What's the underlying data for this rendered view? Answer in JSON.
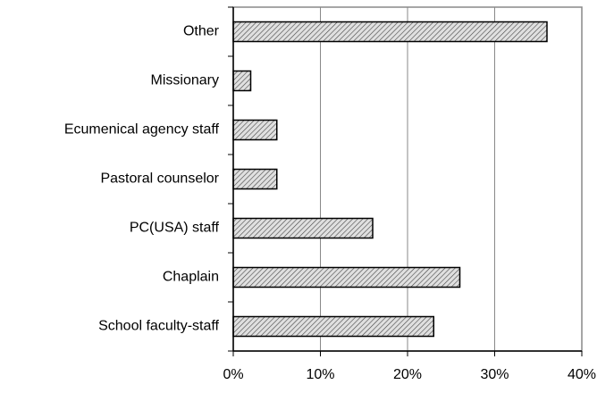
{
  "chart_data": {
    "type": "barh",
    "categories": [
      "Other",
      "Missionary",
      "Ecumenical agency staff",
      "Pastoral counselor",
      "PC(USA) staff",
      "Chaplain",
      "School faculty-staff"
    ],
    "values": [
      36,
      2,
      5,
      5,
      16,
      26,
      23
    ],
    "color": "#c8c8c8",
    "xlim": [
      0,
      40
    ],
    "xticks": [
      {
        "value": 0,
        "label": "0%"
      },
      {
        "value": 10,
        "label": "10%"
      },
      {
        "value": 20,
        "label": "20%"
      },
      {
        "value": 30,
        "label": "30%"
      },
      {
        "value": 40,
        "label": "40%"
      }
    ],
    "grid": true
  }
}
